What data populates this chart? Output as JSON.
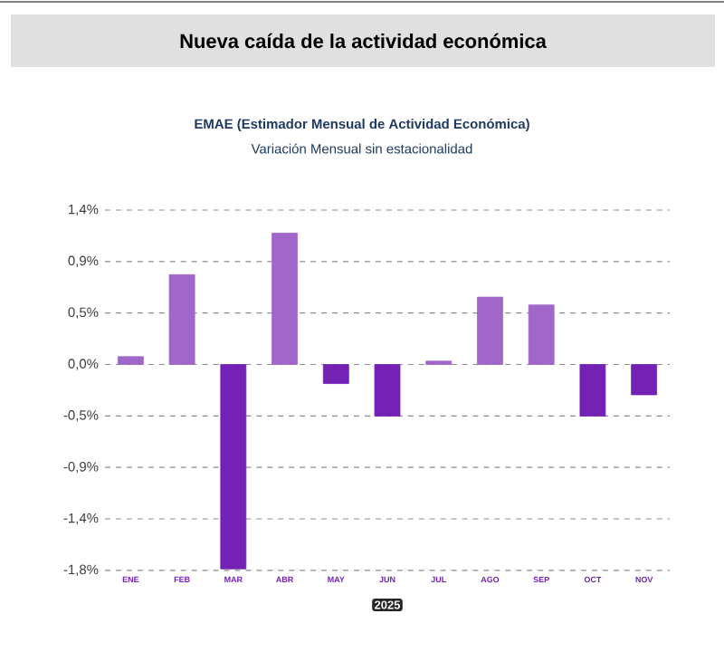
{
  "chart_data": {
    "type": "bar",
    "title": "Nueva caída de la actividad económica",
    "subtitle": "EMAE (Estimador Mensual de Actividad Económica)",
    "annotations": [
      "Variación Mensual sin estacionalidad",
      "2025"
    ],
    "categories": [
      "ENE",
      "FEB",
      "MAR",
      "ABR",
      "MAY",
      "JUN",
      "JUL",
      "AGO",
      "SEP",
      "OCT",
      "NOV"
    ],
    "values": [
      0.07,
      0.8,
      -1.82,
      1.17,
      -0.17,
      -0.46,
      0.03,
      0.6,
      0.53,
      -0.46,
      -0.27
    ],
    "colors": [
      "#a066c9",
      "#a066c9",
      "#7322b5",
      "#a066c9",
      "#7322b5",
      "#7322b5",
      "#a066c9",
      "#a066c9",
      "#a066c9",
      "#7322b5",
      "#7322b5"
    ],
    "ylim": [
      -1.833,
      1.375
    ],
    "yticks": [
      {
        "value": 1.375,
        "label": "1,4%"
      },
      {
        "value": 0.917,
        "label": "0,9%"
      },
      {
        "value": 0.458,
        "label": "0,5%"
      },
      {
        "value": 0,
        "label": "0,0%"
      },
      {
        "value": -0.458,
        "label": "-0,5%"
      },
      {
        "value": -0.917,
        "label": "-0,9%"
      },
      {
        "value": -1.375,
        "label": "-1,4%"
      },
      {
        "value": -1.833,
        "label": "-1,8%"
      }
    ],
    "grid": "y"
  }
}
